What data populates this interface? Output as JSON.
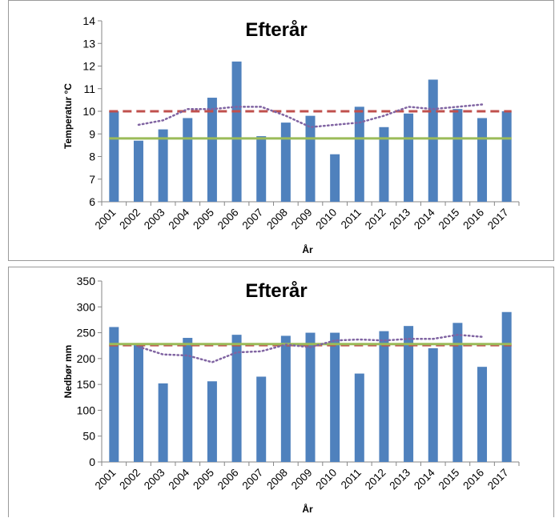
{
  "chart_data": [
    {
      "type": "bar",
      "title": "Efterår",
      "xlabel": "År",
      "ylabel": "Temperatur °C",
      "ylim": [
        6,
        14
      ],
      "ytick_step": 1,
      "grid": false,
      "categories": [
        "2001",
        "2002",
        "2003",
        "2004",
        "2005",
        "2006",
        "2007",
        "2008",
        "2009",
        "2010",
        "2011",
        "2012",
        "2013",
        "2014",
        "2015",
        "2016",
        "2017"
      ],
      "bar_color": "#4f81bd",
      "values": [
        10.0,
        8.7,
        9.2,
        9.7,
        10.6,
        12.2,
        8.9,
        9.5,
        9.8,
        8.1,
        10.2,
        9.3,
        9.9,
        11.4,
        10.1,
        9.7,
        10.0
      ],
      "reference_lines": [
        {
          "value": 10.0,
          "color": "#c0504d",
          "style": "dashed"
        },
        {
          "value": 8.8,
          "color": "#9bbb59",
          "style": "solid"
        }
      ],
      "moving_average": {
        "color": "#8064a2",
        "style": "dotted",
        "values": [
          null,
          9.4,
          9.6,
          10.1,
          10.1,
          10.2,
          10.2,
          9.8,
          9.3,
          9.4,
          9.5,
          9.8,
          10.2,
          10.1,
          10.2,
          10.3,
          null
        ]
      }
    },
    {
      "type": "bar",
      "title": "Efterår",
      "xlabel": "År",
      "ylabel": "Nedbør mm",
      "ylim": [
        0,
        350
      ],
      "ytick_step": 50,
      "grid": false,
      "categories": [
        "2001",
        "2002",
        "2003",
        "2004",
        "2005",
        "2006",
        "2007",
        "2008",
        "2009",
        "2010",
        "2011",
        "2012",
        "2013",
        "2014",
        "2015",
        "2016",
        "2017"
      ],
      "bar_color": "#4f81bd",
      "values": [
        261,
        226,
        152,
        240,
        156,
        246,
        165,
        244,
        250,
        250,
        171,
        253,
        263,
        220,
        269,
        184,
        290
      ],
      "reference_lines": [
        {
          "value": 226,
          "color": "#c0504d",
          "style": "dashed"
        },
        {
          "value": 228,
          "color": "#9bbb59",
          "style": "solid"
        }
      ],
      "moving_average": {
        "color": "#8064a2",
        "style": "dotted",
        "values": [
          null,
          223,
          208,
          206,
          193,
          212,
          214,
          227,
          222,
          235,
          237,
          235,
          238,
          238,
          246,
          242,
          null
        ]
      }
    }
  ]
}
